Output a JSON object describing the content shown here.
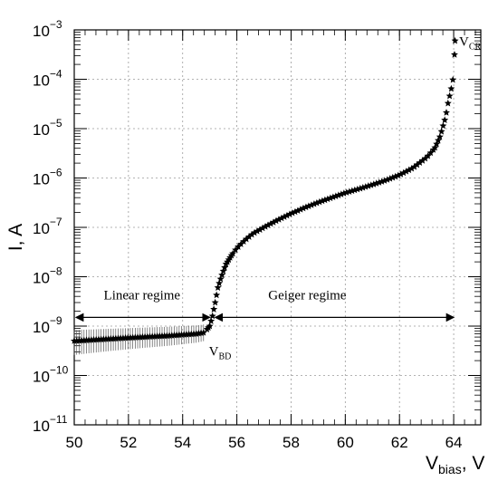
{
  "chart_data": {
    "type": "scatter",
    "title": "",
    "xlabel": {
      "main": "V",
      "sub": "bias",
      "suffix": ", V"
    },
    "ylabel": "I, A",
    "x_range": [
      50,
      65
    ],
    "y_range": [
      1e-11,
      0.001
    ],
    "y_scale": "log",
    "grid": true,
    "marker": "star",
    "x_ticks": [
      "50",
      "52",
      "54",
      "56",
      "58",
      "60",
      "62",
      "64"
    ],
    "y_ticks": [
      {
        "base": "10",
        "exp": "−11"
      },
      {
        "base": "10",
        "exp": "−10"
      },
      {
        "base": "10",
        "exp": "−9"
      },
      {
        "base": "10",
        "exp": "−8"
      },
      {
        "base": "10",
        "exp": "−7"
      },
      {
        "base": "10",
        "exp": "−6"
      },
      {
        "base": "10",
        "exp": "−5"
      },
      {
        "base": "10",
        "exp": "−4"
      },
      {
        "base": "10",
        "exp": "−3"
      }
    ],
    "series": [
      {
        "x": [
          50.0,
          50.5,
          51.0,
          51.5,
          52.0,
          52.5,
          53.0,
          53.5,
          54.0,
          54.5,
          54.8,
          55.0,
          55.1,
          55.2,
          55.3,
          55.4,
          55.5,
          55.6,
          55.8,
          56.0,
          56.3,
          56.6,
          57.0,
          57.5,
          58.0,
          58.5,
          59.0,
          59.5,
          60.0,
          60.5,
          61.0,
          61.5,
          62.0,
          62.5,
          63.0,
          63.3,
          63.5,
          63.7,
          63.8,
          63.9,
          64.0,
          64.05
        ],
        "y": [
          5e-10,
          5.2e-10,
          5.4e-10,
          5.6e-10,
          5.8e-10,
          6e-10,
          6.2e-10,
          6.4e-10,
          6.7e-10,
          7e-10,
          7.4e-10,
          1e-09,
          1.6e-09,
          3e-09,
          6e-09,
          9e-09,
          1.3e-08,
          1.8e-08,
          2.7e-08,
          3.8e-08,
          5.5e-08,
          7.5e-08,
          1e-07,
          1.4e-07,
          1.9e-07,
          2.5e-07,
          3.2e-07,
          4e-07,
          5e-07,
          6e-07,
          7.3e-07,
          9e-07,
          1.15e-06,
          1.6e-06,
          2.6e-06,
          4e-06,
          7e-06,
          1.7e-05,
          3.5e-05,
          6e-05,
          0.00012,
          0.0006
        ],
        "y_err_low": [
          2.6e-10,
          2.8e-10,
          3e-10,
          3.2e-10,
          3.4e-10,
          3.6e-10,
          3.8e-10,
          4e-10,
          4.3e-10,
          4.6e-10,
          5e-10
        ],
        "y_err_high": [
          8.3e-10,
          8.5e-10,
          8.7e-10,
          8.9e-10,
          9.1e-10,
          9.3e-10,
          9.5e-10,
          9.7e-10,
          1e-09,
          1.03e-09,
          1.08e-09
        ]
      }
    ],
    "annotations": {
      "linear": {
        "text": "Linear regime",
        "x_from": 50,
        "x_to": 55.0,
        "y": 1.5e-09
      },
      "geiger": {
        "text": "Geiger regime",
        "x_from": 55.2,
        "x_to": 64.0,
        "y": 1.5e-09
      },
      "vbd": {
        "main": "V",
        "sub": "BD",
        "x": 55.3,
        "y": 3e-10
      },
      "vcr": {
        "main": "V",
        "sub": "CR",
        "x": 64.2,
        "y": 0.0004
      }
    }
  }
}
